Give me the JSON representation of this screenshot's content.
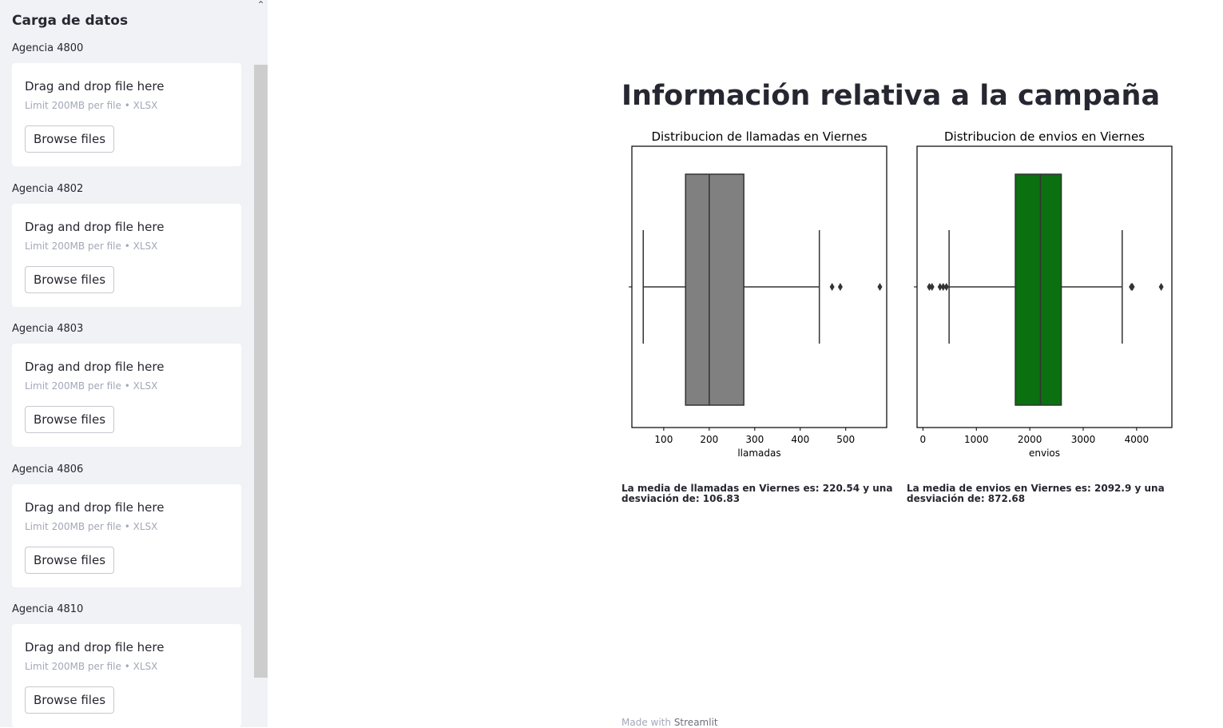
{
  "sidebar": {
    "title": "Carga de datos",
    "collapse_icon": "chevron-up-icon",
    "uploaders": [
      {
        "label": "Agencia 4800",
        "drag_text": "Drag and drop file here",
        "limit_text": "Limit 200MB per file • XLSX",
        "button": "Browse files"
      },
      {
        "label": "Agencia 4802",
        "drag_text": "Drag and drop file here",
        "limit_text": "Limit 200MB per file • XLSX",
        "button": "Browse files"
      },
      {
        "label": "Agencia 4803",
        "drag_text": "Drag and drop file here",
        "limit_text": "Limit 200MB per file • XLSX",
        "button": "Browse files"
      },
      {
        "label": "Agencia 4806",
        "drag_text": "Drag and drop file here",
        "limit_text": "Limit 200MB per file • XLSX",
        "button": "Browse files"
      },
      {
        "label": "Agencia 4810",
        "drag_text": "Drag and drop file here",
        "limit_text": "Limit 200MB per file • XLSX",
        "button": "Browse files"
      }
    ]
  },
  "main": {
    "title": "Información relativa a la campaña",
    "stats": [
      "La media de llamadas en Viernes es: 220.54 y una desviación de: 106.83",
      "La media de envios en Viernes es: 2092.9 y una desviación de: 872.68"
    ],
    "footer_prefix": "Made with",
    "footer_brand": "Streamlit"
  },
  "chart_data": [
    {
      "type": "box",
      "title": "Distribucion de llamadas en Viernes",
      "xlabel": "llamadas",
      "xticks": [
        100,
        200,
        300,
        400,
        500
      ],
      "xlim": [
        30,
        590
      ],
      "color": "#808080",
      "whisker_low": 55,
      "q1": 148,
      "median": 200,
      "q3": 276,
      "whisker_high": 442,
      "outliers": [
        470,
        488,
        575
      ]
    },
    {
      "type": "box",
      "title": "Distribucion de envios en Viernes",
      "xlabel": "envios",
      "xticks": [
        0,
        1000,
        2000,
        3000,
        4000
      ],
      "xlim": [
        -110,
        4660
      ],
      "color": "#0a7010",
      "whisker_low": 490,
      "q1": 1730,
      "median": 2200,
      "q3": 2590,
      "whisker_high": 3730,
      "outliers": [
        120,
        170,
        320,
        380,
        440,
        3900,
        3920,
        4460
      ]
    }
  ]
}
